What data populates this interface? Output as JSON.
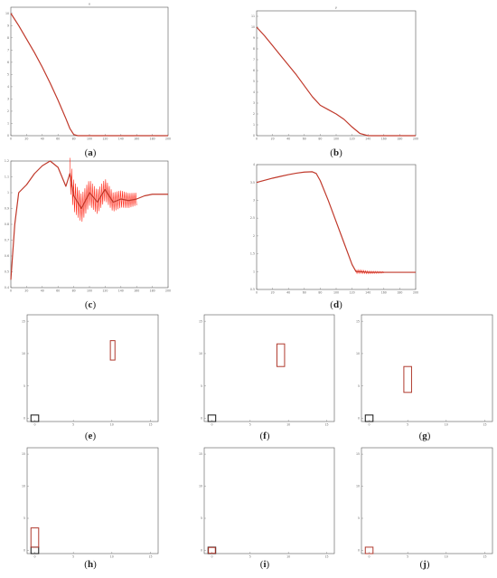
{
  "chart_data": [
    {
      "caption": "(a)",
      "caption_letter": "a",
      "type": "line",
      "title": "x",
      "xlim": [
        0,
        200
      ],
      "ylim": [
        0,
        10.5
      ],
      "xticks": [
        0,
        20,
        40,
        60,
        80,
        100,
        120,
        140,
        160,
        180,
        200
      ],
      "yticks": [
        0,
        1,
        2,
        3,
        4,
        5,
        6,
        7,
        8,
        9,
        10
      ],
      "color": "#c0392b",
      "series": [
        {
          "x": [
            0,
            10,
            20,
            30,
            40,
            50,
            60,
            70,
            75,
            80,
            85,
            100,
            150,
            200
          ],
          "y": [
            10.0,
            9.0,
            7.9,
            6.8,
            5.6,
            4.3,
            2.9,
            1.4,
            0.6,
            0.1,
            0.0,
            0.0,
            0.0,
            0.0
          ]
        }
      ]
    },
    {
      "caption": "(b)",
      "caption_letter": "b",
      "type": "line",
      "title": "y",
      "xlim": [
        0,
        200
      ],
      "ylim": [
        0,
        11.5
      ],
      "xticks": [
        0,
        20,
        40,
        60,
        80,
        100,
        120,
        140,
        160,
        180,
        200
      ],
      "yticks": [
        0,
        1,
        2,
        3,
        4,
        5,
        6,
        7,
        8,
        9,
        10,
        11
      ],
      "color": "#c0392b",
      "series": [
        {
          "x": [
            0,
            10,
            20,
            30,
            40,
            50,
            60,
            70,
            80,
            90,
            100,
            110,
            120,
            130,
            140,
            150,
            200
          ],
          "y": [
            10.0,
            9.2,
            8.3,
            7.4,
            6.5,
            5.6,
            4.6,
            3.6,
            2.8,
            2.4,
            2.0,
            1.5,
            0.8,
            0.2,
            0.0,
            0.0,
            0.0
          ]
        }
      ]
    },
    {
      "caption": "(c)",
      "caption_letter": "c",
      "type": "line",
      "title": "",
      "xlim": [
        0,
        200
      ],
      "ylim": [
        0.4,
        1.2
      ],
      "xticks": [
        0,
        20,
        40,
        60,
        80,
        100,
        120,
        140,
        160,
        180,
        200
      ],
      "yticks": [
        0.4,
        0.5,
        0.6,
        0.7,
        0.8,
        0.9,
        1,
        1.1,
        1.2
      ],
      "color": "#c0392b",
      "oscillation": {
        "x_start": 75,
        "x_end": 160,
        "amplitude_start": 0.1,
        "amplitude_end": 0.04
      },
      "series": [
        {
          "x": [
            0,
            5,
            10,
            20,
            30,
            40,
            50,
            60,
            70,
            75,
            80,
            90,
            100,
            110,
            120,
            130,
            140,
            150,
            160,
            170,
            180,
            190,
            200
          ],
          "y": [
            0.45,
            0.8,
            1.0,
            1.05,
            1.12,
            1.17,
            1.2,
            1.16,
            1.04,
            1.12,
            0.98,
            0.9,
            1.0,
            0.94,
            1.02,
            0.94,
            0.96,
            0.95,
            0.96,
            0.98,
            0.99,
            0.99,
            0.99
          ]
        }
      ]
    },
    {
      "caption": "(d)",
      "caption_letter": "d",
      "type": "line",
      "title": "",
      "xlim": [
        0,
        200
      ],
      "ylim": [
        0.5,
        4
      ],
      "xticks": [
        0,
        20,
        40,
        60,
        80,
        100,
        120,
        140,
        160,
        180,
        200
      ],
      "yticks": [
        0.5,
        1,
        1.5,
        2,
        2.5,
        3,
        3.5,
        4
      ],
      "color": "#c0392b",
      "oscillation": {
        "x_start": 125,
        "x_end": 160,
        "amplitude_start": 0.05,
        "amplitude_end": 0.02
      },
      "series": [
        {
          "x": [
            0,
            10,
            20,
            30,
            40,
            50,
            60,
            70,
            75,
            80,
            90,
            100,
            110,
            120,
            125,
            130,
            140,
            160,
            200
          ],
          "y": [
            3.5,
            3.56,
            3.62,
            3.67,
            3.72,
            3.76,
            3.79,
            3.8,
            3.75,
            3.55,
            3.0,
            2.4,
            1.8,
            1.2,
            1.0,
            1.0,
            0.98,
            0.98,
            0.98
          ]
        }
      ]
    },
    {
      "caption": "(e)",
      "caption_letter": "e",
      "type": "rectangles",
      "title": "",
      "xlim": [
        -1,
        16
      ],
      "ylim": [
        -0.5,
        16
      ],
      "xticks": [
        0,
        5,
        10,
        15
      ],
      "yticks": [
        0,
        5,
        10,
        15
      ],
      "rects": [
        {
          "x": [
            -0.5,
            0.5
          ],
          "y": [
            -0.5,
            0.5
          ],
          "color": "#111111"
        },
        {
          "x": [
            9.8,
            10.4
          ],
          "y": [
            9,
            12
          ],
          "color": "#b03a2e"
        }
      ]
    },
    {
      "caption": "(f)",
      "caption_letter": "f",
      "type": "rectangles",
      "title": "",
      "xlim": [
        -1,
        16
      ],
      "ylim": [
        -0.5,
        16
      ],
      "xticks": [
        0,
        5,
        10,
        15
      ],
      "yticks": [
        0,
        5,
        10,
        15
      ],
      "rects": [
        {
          "x": [
            -0.5,
            0.5
          ],
          "y": [
            -0.5,
            0.5
          ],
          "color": "#111111"
        },
        {
          "x": [
            8.5,
            9.5
          ],
          "y": [
            8,
            11.5
          ],
          "color": "#b03a2e"
        }
      ]
    },
    {
      "caption": "(g)",
      "caption_letter": "g",
      "type": "rectangles",
      "title": "",
      "xlim": [
        -1,
        16
      ],
      "ylim": [
        -0.5,
        16
      ],
      "xticks": [
        0,
        5,
        10,
        15
      ],
      "yticks": [
        0,
        5,
        10,
        15
      ],
      "rects": [
        {
          "x": [
            -0.5,
            0.5
          ],
          "y": [
            -0.5,
            0.5
          ],
          "color": "#111111"
        },
        {
          "x": [
            4.5,
            5.5
          ],
          "y": [
            4,
            8
          ],
          "color": "#b03a2e"
        }
      ]
    },
    {
      "caption": "(h)",
      "caption_letter": "h",
      "type": "rectangles",
      "title": "",
      "xlim": [
        -1,
        16
      ],
      "ylim": [
        -0.5,
        16
      ],
      "xticks": [
        0,
        5,
        10,
        15
      ],
      "yticks": [
        0,
        5,
        10,
        15
      ],
      "rects": [
        {
          "x": [
            -0.5,
            0.5
          ],
          "y": [
            -0.5,
            0.5
          ],
          "color": "#111111"
        },
        {
          "x": [
            -0.5,
            0.5
          ],
          "y": [
            0.5,
            3.5
          ],
          "color": "#b03a2e"
        }
      ]
    },
    {
      "caption": "(i)",
      "caption_letter": "i",
      "type": "rectangles",
      "title": "",
      "xlim": [
        -1,
        16
      ],
      "ylim": [
        -0.5,
        16
      ],
      "xticks": [
        0,
        5,
        10,
        15
      ],
      "yticks": [
        0,
        5,
        10,
        15
      ],
      "rects": [
        {
          "x": [
            -0.5,
            0.5
          ],
          "y": [
            -0.5,
            0.5
          ],
          "color": "#111111"
        },
        {
          "x": [
            -0.45,
            0.45
          ],
          "y": [
            -0.45,
            0.45
          ],
          "color": "#b03a2e"
        }
      ]
    },
    {
      "caption": "(j)",
      "caption_letter": "j",
      "type": "rectangles",
      "title": "",
      "xlim": [
        -1,
        16
      ],
      "ylim": [
        -0.5,
        16
      ],
      "xticks": [
        0,
        5,
        10,
        15
      ],
      "yticks": [
        0,
        5,
        10,
        15
      ],
      "rects": [
        {
          "x": [
            -0.5,
            0.5
          ],
          "y": [
            -0.5,
            0.5
          ],
          "color": "#b03a2e"
        }
      ]
    }
  ]
}
